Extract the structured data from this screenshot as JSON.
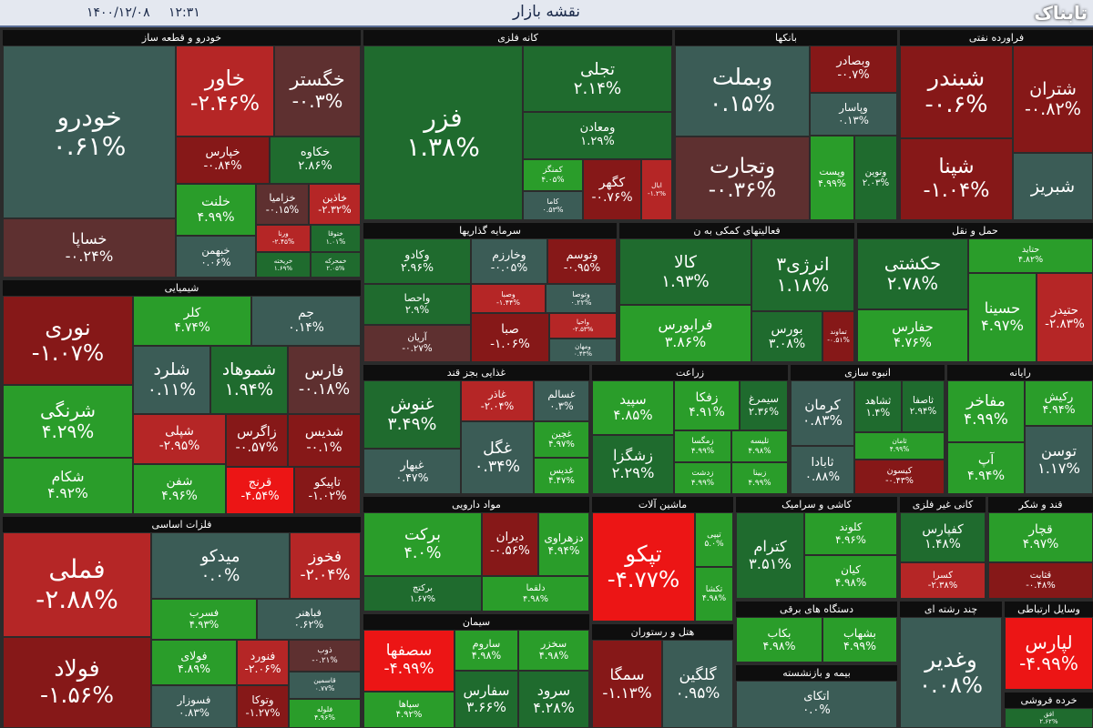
{
  "header": {
    "date": "۱۴۰۰/۱۲/۰۸",
    "time": "۱۲:۳۱",
    "title": "نقشه بازار"
  },
  "watermark": "تابناک",
  "sectors": [
    {
      "name": "خودرو و قطعه ساز",
      "tiles": [
        {
          "name": "خودرو",
          "change": "۰.۶۱%"
        },
        {
          "name": "خساپا",
          "change": "-۰.۲۴%"
        },
        {
          "name": "خاور",
          "change": "-۲.۴۶%"
        },
        {
          "name": "خگستر",
          "change": "-۰.۳%"
        },
        {
          "name": "خپارس",
          "change": "-۰.۸۴%"
        },
        {
          "name": "خکاوه",
          "change": "۲.۸۶%"
        },
        {
          "name": "خلنت",
          "change": "۴.۹۹%"
        },
        {
          "name": "خزامیا",
          "change": "-۰.۱۵%"
        },
        {
          "name": "خاذین",
          "change": "-۲.۳۲%"
        },
        {
          "name": "خبهمن",
          "change": "۰.۰۶%"
        },
        {
          "name": "ورنا",
          "change": "-۲.۴۵%"
        },
        {
          "name": "خریخته",
          "change": "۱.۶۹%"
        },
        {
          "name": "ختوقا",
          "change": "۱.۰۱%"
        },
        {
          "name": "خمحرکه",
          "change": "۲.۰۵%"
        }
      ]
    },
    {
      "name": "شیمیایی",
      "tiles": [
        {
          "name": "نوری",
          "change": "-۱.۰۷%"
        },
        {
          "name": "کلر",
          "change": "۴.۷۴%"
        },
        {
          "name": "جم",
          "change": "۰.۱۴%"
        },
        {
          "name": "شرنگی",
          "change": "۴.۲۹%"
        },
        {
          "name": "شکام",
          "change": "۴.۹۲%"
        },
        {
          "name": "شلرد",
          "change": "۰.۱۱%"
        },
        {
          "name": "شموهاد",
          "change": "۱.۹۴%"
        },
        {
          "name": "فارس",
          "change": "-۰.۱۸%"
        },
        {
          "name": "شپلی",
          "change": "-۲.۹۵%"
        },
        {
          "name": "زاگرس",
          "change": "-۰.۵۷%"
        },
        {
          "name": "شدیس",
          "change": "-۰.۱%"
        },
        {
          "name": "شفن",
          "change": "۴.۹۶%"
        },
        {
          "name": "قرنج",
          "change": "-۴.۵۴%"
        },
        {
          "name": "تاپیکو",
          "change": "-۱.۰۲%"
        }
      ]
    },
    {
      "name": "فلزات اساسی",
      "tiles": [
        {
          "name": "فملی",
          "change": "-۲.۸۸%"
        },
        {
          "name": "فولاد",
          "change": "-۱.۵۶%"
        },
        {
          "name": "میدکو",
          "change": "۰.۰%"
        },
        {
          "name": "فخوز",
          "change": "-۲.۰۴%"
        },
        {
          "name": "فسرب",
          "change": "۴.۹۳%"
        },
        {
          "name": "فباهنر",
          "change": "۰.۶۲%"
        },
        {
          "name": "فولای",
          "change": "۴.۸۹%"
        },
        {
          "name": "فنورد",
          "change": "-۲.۰۶%"
        },
        {
          "name": "ذوب",
          "change": "-۰.۲۱%"
        },
        {
          "name": "فسوزار",
          "change": "۰.۸۳%"
        },
        {
          "name": "وتوکا",
          "change": "-۱.۲۷%"
        },
        {
          "name": "قاسمین",
          "change": "۰.۷۷%"
        },
        {
          "name": "فلوله",
          "change": "۴.۹۶%"
        }
      ]
    },
    {
      "name": "کانه فلزی",
      "tiles": [
        {
          "name": "فزر",
          "change": "۱.۳۸%"
        },
        {
          "name": "تجلی",
          "change": "۲.۱۴%"
        },
        {
          "name": "ومعادن",
          "change": "۱.۲۹%"
        },
        {
          "name": "کمنگز",
          "change": "۴.۰۵%"
        },
        {
          "name": "کگهر",
          "change": "-۰.۷۶%"
        },
        {
          "name": "ابال",
          "change": "-۱.۲%"
        },
        {
          "name": "کاما",
          "change": "۰.۵۳%"
        }
      ]
    },
    {
      "name": "بانکها",
      "tiles": [
        {
          "name": "وبملت",
          "change": "۰.۱۵%"
        },
        {
          "name": "وتجارت",
          "change": "-۰.۳۶%"
        },
        {
          "name": "وبصادر",
          "change": "-۰.۷%"
        },
        {
          "name": "وپاسار",
          "change": "۰.۱۳%"
        },
        {
          "name": "وپست",
          "change": "۴.۹۹%"
        },
        {
          "name": "ونوین",
          "change": "۲.۰۳%"
        }
      ]
    },
    {
      "name": "فراورده نفتی",
      "tiles": [
        {
          "name": "شبندر",
          "change": "-۰.۶%"
        },
        {
          "name": "شتران",
          "change": "-۰.۸۲%"
        },
        {
          "name": "شپنا",
          "change": "-۱.۰۴%"
        },
        {
          "name": "شبریز"
        }
      ]
    },
    {
      "name": "سرمایه گذاریها",
      "tiles": [
        {
          "name": "وکادو",
          "change": "۲.۹۶%"
        },
        {
          "name": "وخارزم",
          "change": "-۰.۰۵%"
        },
        {
          "name": "وتوسم",
          "change": "-۰.۹۵%"
        },
        {
          "name": "واحصا",
          "change": "۲.۹%"
        },
        {
          "name": "وصبا",
          "change": "-۱.۴۴%"
        },
        {
          "name": "وتوصا",
          "change": "۰.۲۲%"
        },
        {
          "name": "آریان",
          "change": "-۰.۲۷%"
        },
        {
          "name": "صبا",
          "change": "-۱.۰۶%"
        },
        {
          "name": "واحیا",
          "change": "-۲.۵۳%"
        },
        {
          "name": "ومهان",
          "change": "۰.۴۳%"
        }
      ]
    },
    {
      "name": "فعالیتهای کمکی به ن",
      "tiles": [
        {
          "name": "کالا",
          "change": "۱.۹۳%"
        },
        {
          "name": "انرژی۳",
          "change": "۱.۱۸%"
        },
        {
          "name": "فرابورس",
          "change": "۳.۸۶%"
        },
        {
          "name": "بورس",
          "change": "۳.۰۸%"
        },
        {
          "name": "تماوند",
          "change": "-۰.۵۱%"
        }
      ]
    },
    {
      "name": "حمل و نقل",
      "tiles": [
        {
          "name": "حکشتی",
          "change": "۲.۷۸%"
        },
        {
          "name": "حتاید",
          "change": "۴.۸۲%"
        },
        {
          "name": "حسینا",
          "change": "۴.۹۷%"
        },
        {
          "name": "حتیدر",
          "change": "-۲.۸۳%"
        },
        {
          "name": "حفارس",
          "change": "۴.۷۶%"
        }
      ]
    },
    {
      "name": "غذایی بجز قند",
      "tiles": [
        {
          "name": "غنوش",
          "change": "۳.۴۹%"
        },
        {
          "name": "غاذر",
          "change": "-۲.۰۴%"
        },
        {
          "name": "غسالم",
          "change": "۰.۳%"
        },
        {
          "name": "غبهار",
          "change": "۰.۴۷%"
        },
        {
          "name": "غگل",
          "change": "۰.۳۴%"
        },
        {
          "name": "غچین",
          "change": "۴.۹۷%"
        },
        {
          "name": "غدیس",
          "change": "۴.۴۷%"
        }
      ]
    },
    {
      "name": "زراعت",
      "tiles": [
        {
          "name": "سپید",
          "change": "۴.۸۵%"
        },
        {
          "name": "زفکا",
          "change": "۴.۹۱%"
        },
        {
          "name": "سیمرغ",
          "change": "۲.۳۶%"
        },
        {
          "name": "زشگزا",
          "change": "۲.۲۹%"
        },
        {
          "name": "زمگسا",
          "change": "۴.۹۹%"
        },
        {
          "name": "تلیسه",
          "change": "۴.۹۸%"
        },
        {
          "name": "زدشت",
          "change": "۴.۹۹%"
        },
        {
          "name": "زبینا",
          "change": "۴.۹۹%"
        }
      ]
    },
    {
      "name": "انبوه سازی",
      "tiles": [
        {
          "name": "کرمان",
          "change": "۰.۸۳%"
        },
        {
          "name": "ثشاهد",
          "change": "۱.۴%"
        },
        {
          "name": "ثاصفا",
          "change": "۲.۹۴%"
        },
        {
          "name": "ثابادا",
          "change": "۰.۸۸%"
        },
        {
          "name": "ثامان",
          "change": "۴.۹۹%"
        },
        {
          "name": "کیسون",
          "change": "-۰.۴۳%"
        }
      ]
    },
    {
      "name": "رایانه",
      "tiles": [
        {
          "name": "مفاخر",
          "change": "۴.۹۹%"
        },
        {
          "name": "رکیش",
          "change": "۴.۹۴%"
        },
        {
          "name": "توسن",
          "change": "۱.۱۷%"
        },
        {
          "name": "آپ",
          "change": "۴.۹۴%"
        }
      ]
    },
    {
      "name": "مواد دارویی",
      "tiles": [
        {
          "name": "برکت",
          "change": "۴.۰%"
        },
        {
          "name": "دیران",
          "change": "-۰.۵۶%"
        },
        {
          "name": "دزهراوی",
          "change": "۴.۹۴%"
        },
        {
          "name": "برکتج",
          "change": "۱.۶۷%"
        },
        {
          "name": "دلقما",
          "change": "۴.۹۸%"
        }
      ]
    },
    {
      "name": "ماشین آلات",
      "tiles": [
        {
          "name": "تپکو",
          "change": "-۴.۷۷%"
        },
        {
          "name": "تیپی",
          "change": "۵.۰%"
        },
        {
          "name": "تکشا",
          "change": "۴.۹۸%"
        }
      ]
    },
    {
      "name": "کاشی و سرامیک",
      "tiles": [
        {
          "name": "کترام",
          "change": "۳.۵۱%"
        },
        {
          "name": "کلوند",
          "change": "۴.۹۶%"
        },
        {
          "name": "کیان",
          "change": "۴.۹۸%"
        }
      ]
    },
    {
      "name": "کانی غیر فلزی",
      "tiles": [
        {
          "name": "کفپارس",
          "change": "۱.۴۸%"
        },
        {
          "name": "کسرا",
          "change": "-۲.۳۸%"
        }
      ]
    },
    {
      "name": "قند و شکر",
      "tiles": [
        {
          "name": "قچار",
          "change": "۴.۹۷%"
        },
        {
          "name": "قثابت",
          "change": "-۰.۴۸%"
        }
      ]
    },
    {
      "name": "دستگاه های برقی",
      "tiles": [
        {
          "name": "بکاب",
          "change": "۴.۹۸%"
        },
        {
          "name": "بشهاب",
          "change": "۴.۹۹%"
        }
      ]
    },
    {
      "name": "چند رشته ای",
      "tiles": [
        {
          "name": "وغدیر",
          "change": "۰.۰۸%"
        }
      ]
    },
    {
      "name": "وسایل ارتباطی",
      "tiles": [
        {
          "name": "لپارس",
          "change": "-۴.۹۹%"
        }
      ]
    },
    {
      "name": "سیمان",
      "tiles": [
        {
          "name": "سصفها",
          "change": "-۴.۹۹%"
        },
        {
          "name": "ساروم",
          "change": "۴.۹۸%"
        },
        {
          "name": "سخزر",
          "change": "۴.۹۸%"
        },
        {
          "name": "سپاها",
          "change": "۴.۹۲%"
        },
        {
          "name": "سفارس",
          "change": "۳.۶۶%"
        },
        {
          "name": "سرود",
          "change": "۴.۲۸%"
        }
      ]
    },
    {
      "name": "هتل و رستوران",
      "tiles": [
        {
          "name": "سمگا",
          "change": "-۱.۱۳%"
        },
        {
          "name": "گلگین",
          "change": "۰.۹۵%"
        }
      ]
    },
    {
      "name": "بیمه و بازنشسته",
      "tiles": [
        {
          "name": "اتکای",
          "change": "۰.۰%"
        }
      ]
    },
    {
      "name": "خرده فروشی",
      "tiles": [
        {
          "name": "افق",
          "change": "۲.۶۲%"
        }
      ]
    }
  ]
}
